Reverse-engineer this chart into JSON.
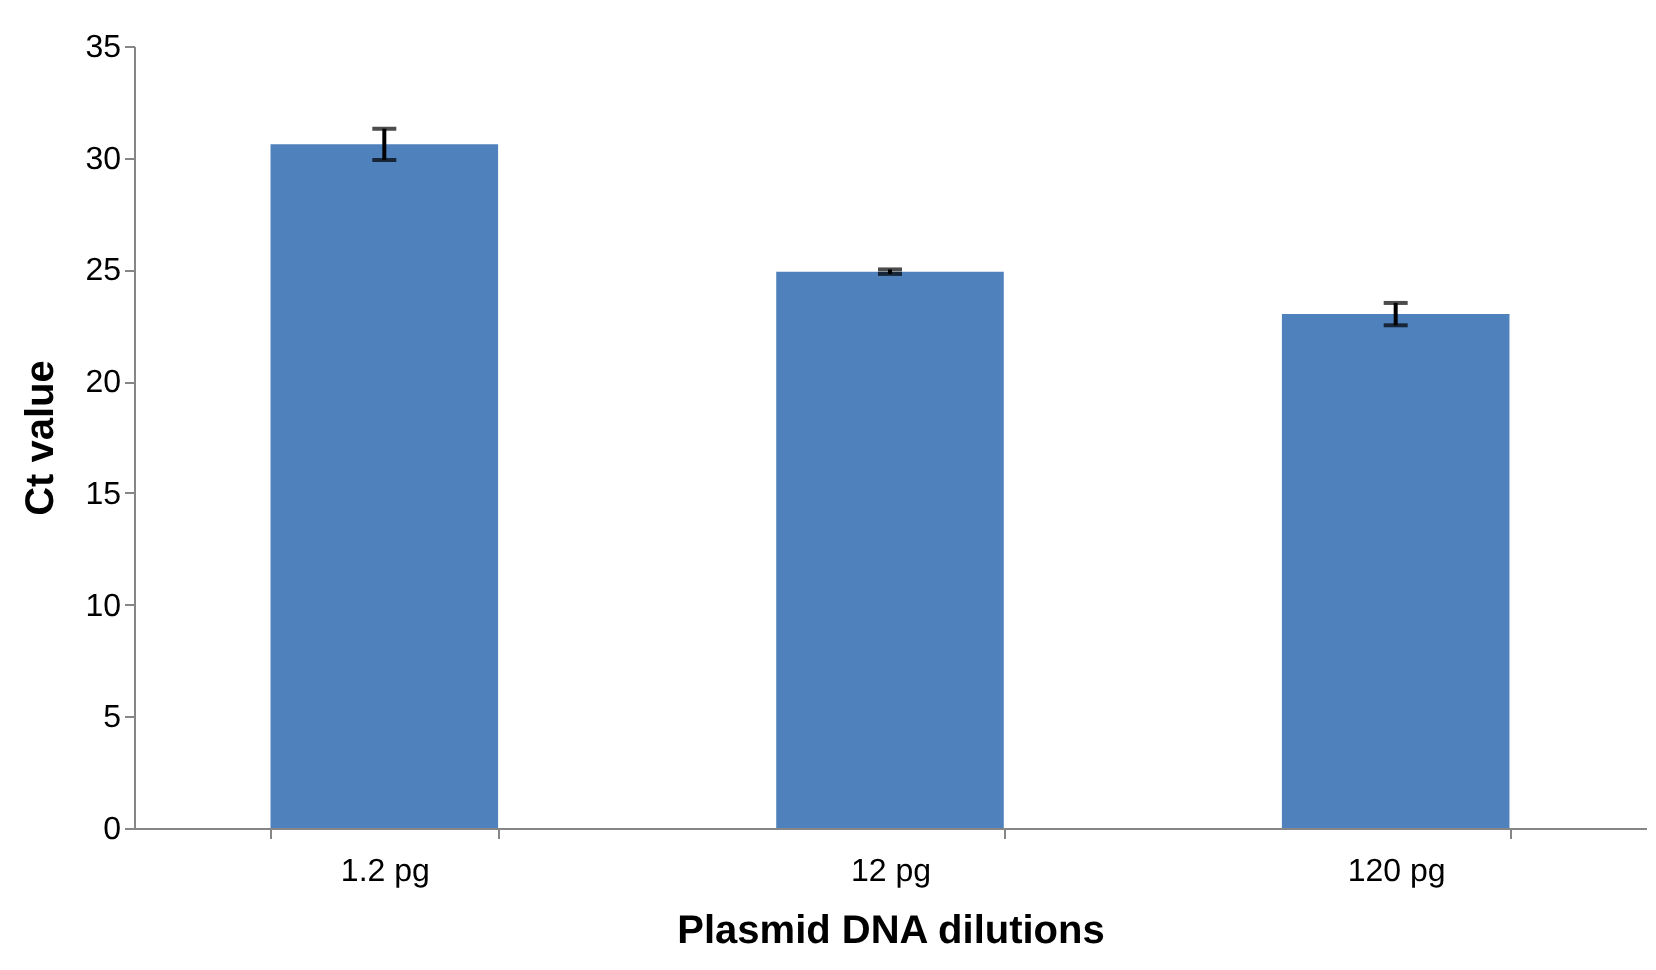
{
  "chart_data": {
    "type": "bar",
    "xlabel": "Plasmid DNA dilutions",
    "ylabel": "Ct value",
    "categories": [
      "1.2 pg",
      "12 pg",
      "120 pg"
    ],
    "values": [
      30.6,
      24.9,
      23.0
    ],
    "errors": [
      0.7,
      0.1,
      0.5
    ],
    "color": "#4f81bd",
    "ylim": [
      0,
      35
    ],
    "yticks": [
      0,
      5,
      10,
      15,
      20,
      25,
      30,
      35
    ],
    "grid": false
  }
}
